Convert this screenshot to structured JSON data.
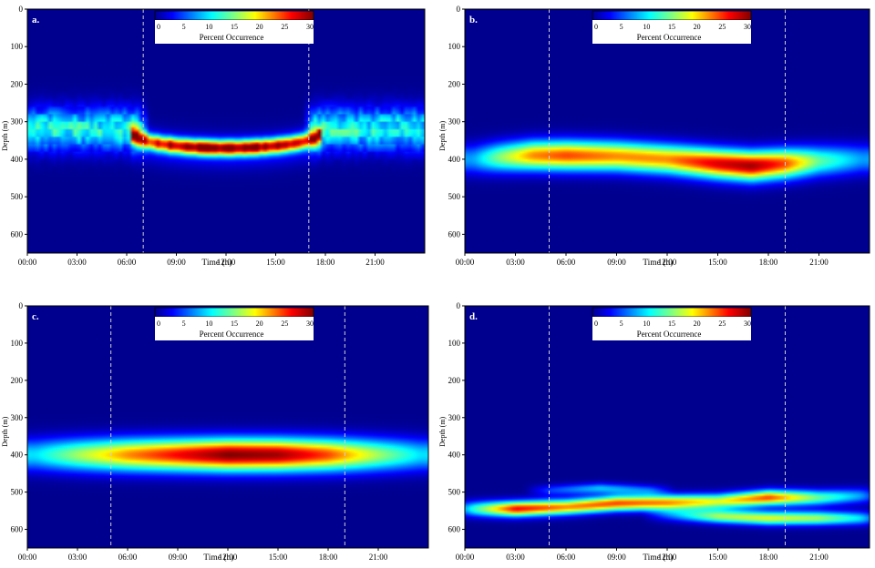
{
  "figure": {
    "panels": [
      "a.",
      "b.",
      "c.",
      "d."
    ]
  },
  "colorbar": {
    "ticks": [
      "0",
      "5",
      "10",
      "15",
      "20",
      "25",
      "30"
    ],
    "label": "Percent Occurrence"
  },
  "colors": {
    "background": "#00008f",
    "panel_letter": "#ffffff",
    "day_lines": "#d0d0d0"
  },
  "chart_data": [
    {
      "type": "heatmap",
      "panel": "a.",
      "xlabel": "Time (h)",
      "ylabel": "Depth (m)",
      "x_ticks": [
        "00:00",
        "03:00",
        "06:00",
        "09:00",
        "12:00",
        "15:00",
        "18:00",
        "21:00"
      ],
      "y_ticks": [
        "0",
        "100",
        "200",
        "300",
        "400",
        "500",
        "600"
      ],
      "xlim": [
        0,
        24
      ],
      "ylim": [
        650,
        0
      ],
      "colorbar_range": [
        0,
        30
      ],
      "day_night_boundaries_h": [
        7.0,
        17.0
      ],
      "bands": [
        {
          "type": "night",
          "x_range": [
            0,
            6.8
          ],
          "depth": 320,
          "thickness": 55,
          "peak_percent": 12
        },
        {
          "type": "night",
          "x_range": [
            17.2,
            24
          ],
          "depth": 320,
          "thickness": 55,
          "peak_percent": 12
        },
        {
          "type": "day_curve",
          "x_range": [
            6.2,
            17.8
          ],
          "depth_edge": 320,
          "depth_center": 370,
          "thickness": 20,
          "peak_percent": 27
        }
      ]
    },
    {
      "type": "heatmap",
      "panel": "b.",
      "xlabel": "Time (h)",
      "ylabel": "Depth (m)",
      "x_ticks": [
        "00:00",
        "03:00",
        "06:00",
        "09:00",
        "12:00",
        "15:00",
        "18:00",
        "21:00"
      ],
      "y_ticks": [
        "0",
        "100",
        "200",
        "300",
        "400",
        "500",
        "600"
      ],
      "xlim": [
        0,
        24
      ],
      "ylim": [
        650,
        0
      ],
      "colorbar_range": [
        0,
        30
      ],
      "day_night_boundaries_h": [
        5.0,
        19.0
      ],
      "ridge": [
        {
          "t": 0.5,
          "depth": 400,
          "percent": 8
        },
        {
          "t": 2,
          "depth": 395,
          "percent": 15
        },
        {
          "t": 4,
          "depth": 390,
          "percent": 22
        },
        {
          "t": 6,
          "depth": 390,
          "percent": 24
        },
        {
          "t": 9,
          "depth": 392,
          "percent": 22
        },
        {
          "t": 12,
          "depth": 400,
          "percent": 22
        },
        {
          "t": 15,
          "depth": 412,
          "percent": 27
        },
        {
          "t": 17,
          "depth": 418,
          "percent": 29
        },
        {
          "t": 19,
          "depth": 412,
          "percent": 24
        },
        {
          "t": 21,
          "depth": 405,
          "percent": 14
        },
        {
          "t": 23.5,
          "depth": 400,
          "percent": 8
        }
      ],
      "thickness": 38
    },
    {
      "type": "heatmap",
      "panel": "c.",
      "xlabel": "Time (h)",
      "ylabel": "Depth (m)",
      "x_ticks": [
        "00:00",
        "03:00",
        "06:00",
        "09:00",
        "12:00",
        "15:00",
        "18:00",
        "21:00"
      ],
      "y_ticks": [
        "0",
        "100",
        "200",
        "300",
        "400",
        "500",
        "600"
      ],
      "xlim": [
        0,
        24
      ],
      "ylim": [
        650,
        0
      ],
      "colorbar_range": [
        0,
        30
      ],
      "day_night_boundaries_h": [
        5.0,
        19.0
      ],
      "ridge": [
        {
          "t": 0.5,
          "depth": 400,
          "percent": 10
        },
        {
          "t": 3,
          "depth": 400,
          "percent": 16
        },
        {
          "t": 6,
          "depth": 400,
          "percent": 22
        },
        {
          "t": 9,
          "depth": 400,
          "percent": 26
        },
        {
          "t": 12,
          "depth": 400,
          "percent": 30
        },
        {
          "t": 15,
          "depth": 400,
          "percent": 29
        },
        {
          "t": 18,
          "depth": 400,
          "percent": 24
        },
        {
          "t": 21,
          "depth": 400,
          "percent": 16
        },
        {
          "t": 23.5,
          "depth": 400,
          "percent": 10
        }
      ],
      "thickness": 42
    },
    {
      "type": "heatmap",
      "panel": "d.",
      "xlabel": "Time (h)",
      "ylabel": "Depth (m)",
      "x_ticks": [
        "00:00",
        "03:00",
        "06:00",
        "09:00",
        "12:00",
        "15:00",
        "18:00",
        "21:00"
      ],
      "y_ticks": [
        "0",
        "100",
        "200",
        "300",
        "400",
        "500",
        "600"
      ],
      "xlim": [
        0,
        24
      ],
      "ylim": [
        650,
        0
      ],
      "colorbar_range": [
        0,
        30
      ],
      "day_night_boundaries_h": [
        5.0,
        19.0
      ],
      "ridges": [
        {
          "points": [
            {
              "t": 0.5,
              "depth": 545,
              "percent": 12
            },
            {
              "t": 3,
              "depth": 545,
              "percent": 26
            },
            {
              "t": 6,
              "depth": 540,
              "percent": 22
            },
            {
              "t": 9,
              "depth": 530,
              "percent": 24
            },
            {
              "t": 12,
              "depth": 528,
              "percent": 22
            },
            {
              "t": 15,
              "depth": 525,
              "percent": 18
            },
            {
              "t": 18,
              "depth": 515,
              "percent": 24
            },
            {
              "t": 21,
              "depth": 515,
              "percent": 14
            },
            {
              "t": 23.5,
              "depth": 510,
              "percent": 8
            }
          ],
          "thickness": 20
        },
        {
          "points": [
            {
              "t": 12,
              "depth": 560,
              "percent": 6
            },
            {
              "t": 15,
              "depth": 565,
              "percent": 16
            },
            {
              "t": 18,
              "depth": 570,
              "percent": 18
            },
            {
              "t": 21,
              "depth": 570,
              "percent": 16
            },
            {
              "t": 23.5,
              "depth": 570,
              "percent": 10
            }
          ],
          "thickness": 18
        },
        {
          "points": [
            {
              "t": 5,
              "depth": 495,
              "percent": 5
            },
            {
              "t": 8,
              "depth": 490,
              "percent": 9
            },
            {
              "t": 11,
              "depth": 495,
              "percent": 6
            }
          ],
          "thickness": 14
        }
      ]
    }
  ]
}
